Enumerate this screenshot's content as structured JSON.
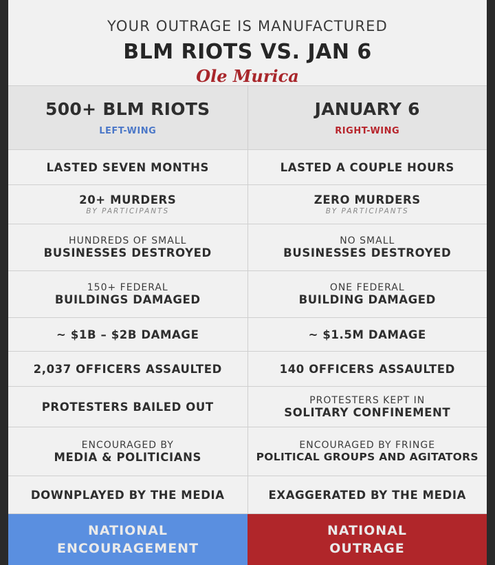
{
  "header": {
    "kicker": "YOUR OUTRAGE IS MANUFACTURED",
    "headline": "BLM RIOTS VS. JAN 6",
    "logo": "Ole Murica"
  },
  "columns": {
    "left": {
      "title": "500+ BLM RIOTS",
      "tag": "LEFT-WING"
    },
    "right": {
      "title": "JANUARY 6",
      "tag": "RIGHT-WING"
    }
  },
  "rows": {
    "duration": {
      "left": "LASTED SEVEN MONTHS",
      "right": "LASTED A COUPLE HOURS"
    },
    "murders": {
      "left": "20+ MURDERS",
      "left_sub": "BY PARTICIPANTS",
      "right": "ZERO MURDERS",
      "right_sub": "BY PARTICIPANTS"
    },
    "businesses": {
      "left_top": "HUNDREDS OF SMALL",
      "left_main": "BUSINESSES DESTROYED",
      "right_top": "NO SMALL",
      "right_main": "BUSINESSES DESTROYED"
    },
    "buildings": {
      "left_top": "150+ FEDERAL",
      "left_main": "BUILDINGS DAMAGED",
      "right_top": "ONE FEDERAL",
      "right_main": "BUILDING DAMAGED"
    },
    "damage": {
      "left": "~ $1B – $2B DAMAGE",
      "right": "~ $1.5M DAMAGE"
    },
    "officers": {
      "left": "2,037 OFFICERS ASSAULTED",
      "right": "140 OFFICERS ASSAULTED"
    },
    "protesters": {
      "left": "PROTESTERS BAILED OUT",
      "right_top": "PROTESTERS KEPT IN",
      "right_main": "SOLITARY CONFINEMENT"
    },
    "encouraged": {
      "left_top": "ENCOURAGED BY",
      "left_main": "MEDIA & POLITICIANS",
      "right_top": "ENCOURAGED BY FRINGE",
      "right_main": "POLITICAL GROUPS AND AGITATORS"
    },
    "media": {
      "left": "DOWNPLAYED BY THE MEDIA",
      "right": "EXAGGERATED BY THE MEDIA"
    }
  },
  "footer": {
    "left_line1": "NATIONAL",
    "left_line2": "ENCOURAGEMENT",
    "right_line1": "NATIONAL",
    "right_line2": "OUTRAGE"
  },
  "colors": {
    "left_accent": "#4c78c8",
    "right_accent": "#b7252c",
    "footer_left": "#5a8fe0",
    "footer_right": "#b0262a"
  }
}
